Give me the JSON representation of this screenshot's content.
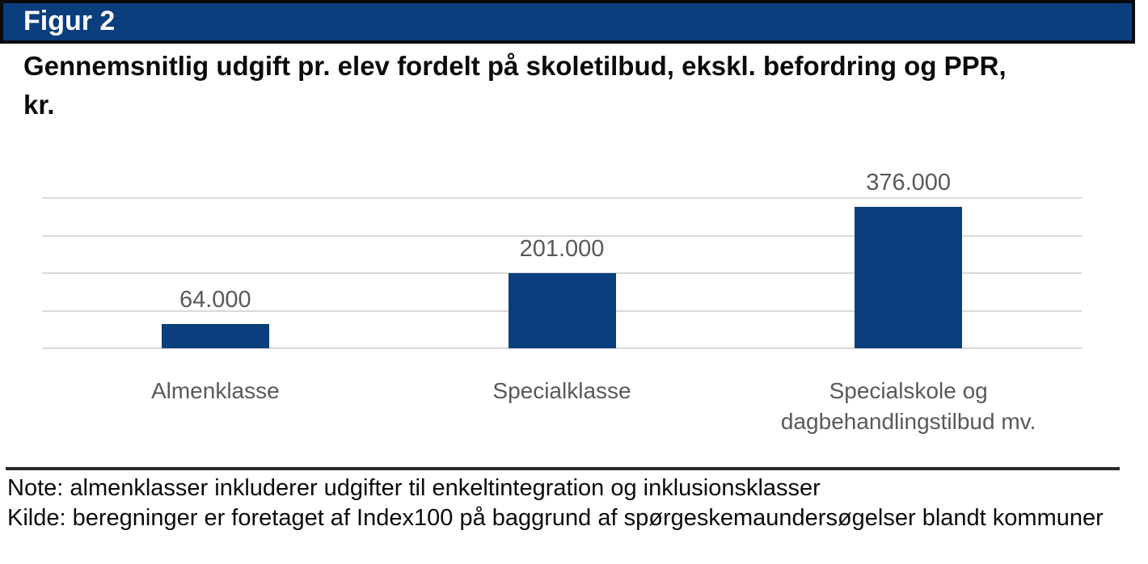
{
  "banner": {
    "label": "Figur 2"
  },
  "title": {
    "line1": "Gennemsnitlig udgift pr. elev fordelt på skoletilbud, ekskl. befordring og PPR,",
    "line2": "kr.",
    "full": "Gennemsnitlig udgift pr. elev fordelt på skoletilbud, ekskl. befordring og PPR, kr."
  },
  "chart_data": {
    "type": "bar",
    "title": "Gennemsnitlig udgift pr. elev fordelt på skoletilbud, ekskl. befordring og PPR, kr.",
    "categories": [
      "Almenklasse",
      "Specialklasse",
      "Specialskole og dagbehandlingstilbud mv."
    ],
    "values": [
      64000,
      201000,
      376000
    ],
    "data_labels": [
      "64.000",
      "201.000",
      "376.000"
    ],
    "unit": "kr.",
    "xlabel": "",
    "ylabel": "",
    "ylim": [
      0,
      400000
    ],
    "gridline_interval": 100000,
    "grid": true,
    "legend": false,
    "y_axis_labels_visible": false,
    "bar_color": "#0A3E7D",
    "gridline_color": "#D9D9D9",
    "label_color": "#595959"
  },
  "categories_display": [
    [
      "Almenklasse"
    ],
    [
      "Specialklasse"
    ],
    [
      "Specialskole og",
      "dagbehandlingstilbud mv."
    ]
  ],
  "notes": {
    "note": "Note: almenklasser inkluderer udgifter til enkeltintegration og inklusionsklasser",
    "kilde": "Kilde: beregninger er foretaget af Index100 på baggrund af spørgeskemaundersøgelser blandt kommuner"
  },
  "colors": {
    "banner_bg": "#0A3E7D",
    "banner_text": "#FFFFFF",
    "bar": "#0A3E7D",
    "gridline": "#D9D9D9",
    "category_label": "#595959",
    "divider": "#2B2B2B",
    "text": "#0B0B0B"
  }
}
